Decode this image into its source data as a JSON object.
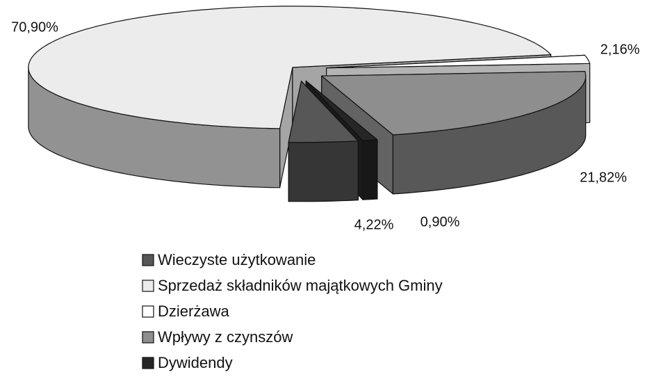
{
  "chart_data": {
    "type": "pie3d",
    "categories": [
      "Wieczyste użytkowanie",
      "Sprzedaż składników majątkowych Gminy",
      "Dzierżawa",
      "Wpływy z czynszów",
      "Dywidendy"
    ],
    "values": [
      4.22,
      70.9,
      2.16,
      21.82,
      0.9
    ],
    "value_labels": [
      "4,22%",
      "70,90%",
      "2,16%",
      "21,82%",
      "0,90%"
    ],
    "colors": [
      "#575757",
      "#ececec",
      "#ffffff",
      "#8e8e8e",
      "#262626"
    ],
    "legend": "bottom"
  }
}
